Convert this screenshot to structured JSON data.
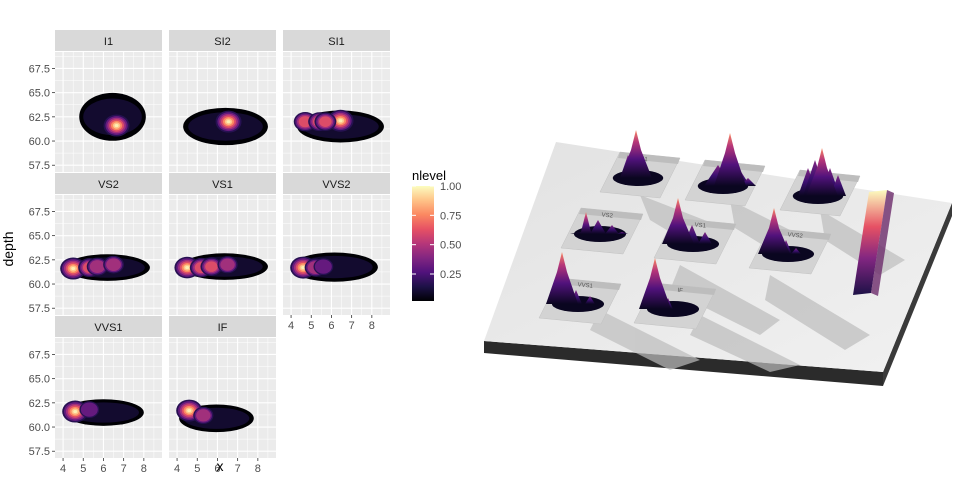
{
  "chart_data": [
    {
      "type": "heatmap",
      "subtype": "faceted 2D density (filled contours)",
      "xlabel": "x",
      "ylabel": "depth",
      "x_ticks": [
        4,
        5,
        6,
        7,
        8
      ],
      "y_ticks": [
        57.5,
        60.0,
        62.5,
        65.0,
        67.5
      ],
      "xlim": [
        3.6,
        8.9
      ],
      "ylim": [
        56.8,
        69.2
      ],
      "panel_background": "#ebebeb",
      "strip_background": "#d9d9d9",
      "legend": {
        "title": "nlevel",
        "position": "right",
        "ticks": [
          0.25,
          0.5,
          0.75,
          1.0
        ],
        "range": [
          0.02,
          1.0
        ],
        "colors": [
          "#000004",
          "#1d1147",
          "#51127c",
          "#822681",
          "#b63679",
          "#e65164",
          "#fb8861",
          "#fec287",
          "#fcfdbf"
        ]
      },
      "facets": [
        {
          "label": "I1",
          "row": 0,
          "col": 0,
          "peaks": [
            {
              "x": 6.65,
              "y": 61.6,
              "value": 1.0
            }
          ],
          "extent": {
            "x": [
              4.8,
              8.1
            ],
            "y": [
              58.0,
              67.0
            ]
          }
        },
        {
          "label": "SI2",
          "row": 0,
          "col": 1,
          "peaks": [
            {
              "x": 6.55,
              "y": 62.0,
              "value": 1.0
            }
          ],
          "extent": {
            "x": [
              4.3,
              8.5
            ],
            "y": [
              58.0,
              65.0
            ]
          }
        },
        {
          "label": "SI1",
          "row": 0,
          "col": 2,
          "peaks": [
            {
              "x": 6.45,
              "y": 62.1,
              "value": 1.0
            },
            {
              "x": 4.7,
              "y": 62.0,
              "value": 0.7
            },
            {
              "x": 5.4,
              "y": 62.0,
              "value": 0.65
            },
            {
              "x": 5.7,
              "y": 62.0,
              "value": 0.6
            }
          ],
          "extent": {
            "x": [
              4.3,
              8.6
            ],
            "y": [
              58.5,
              64.5
            ]
          }
        },
        {
          "label": "VS2",
          "row": 1,
          "col": 0,
          "peaks": [
            {
              "x": 4.5,
              "y": 61.6,
              "value": 1.0
            },
            {
              "x": 5.3,
              "y": 61.7,
              "value": 0.65
            },
            {
              "x": 5.7,
              "y": 61.8,
              "value": 0.55
            },
            {
              "x": 6.5,
              "y": 62.0,
              "value": 0.5
            }
          ],
          "extent": {
            "x": [
              4.1,
              8.3
            ],
            "y": [
              59.2,
              64.2
            ]
          }
        },
        {
          "label": "VS1",
          "row": 1,
          "col": 1,
          "peaks": [
            {
              "x": 4.5,
              "y": 61.7,
              "value": 0.95
            },
            {
              "x": 5.2,
              "y": 61.7,
              "value": 0.7
            },
            {
              "x": 5.7,
              "y": 61.8,
              "value": 0.6
            },
            {
              "x": 6.5,
              "y": 62.0,
              "value": 0.45
            }
          ],
          "extent": {
            "x": [
              4.2,
              8.5
            ],
            "y": [
              59.3,
              64.3
            ]
          }
        },
        {
          "label": "VVS2",
          "row": 1,
          "col": 2,
          "peaks": [
            {
              "x": 4.6,
              "y": 61.7,
              "value": 1.0
            },
            {
              "x": 5.2,
              "y": 61.7,
              "value": 0.55
            },
            {
              "x": 5.6,
              "y": 61.8,
              "value": 0.4
            }
          ],
          "extent": {
            "x": [
              4.0,
              8.3
            ],
            "y": [
              59.0,
              64.5
            ]
          }
        },
        {
          "label": "VVS1",
          "row": 2,
          "col": 0,
          "peaks": [
            {
              "x": 4.6,
              "y": 61.6,
              "value": 1.0
            },
            {
              "x": 5.3,
              "y": 61.8,
              "value": 0.4
            }
          ],
          "extent": {
            "x": [
              4.0,
              8.0
            ],
            "y": [
              59.0,
              64.0
            ]
          }
        },
        {
          "label": "IF",
          "row": 2,
          "col": 1,
          "peaks": [
            {
              "x": 4.6,
              "y": 61.7,
              "value": 1.0
            },
            {
              "x": 5.3,
              "y": 61.2,
              "value": 0.45
            }
          ],
          "extent": {
            "x": [
              4.1,
              7.8
            ],
            "y": [
              58.3,
              63.5
            ]
          }
        }
      ],
      "grid": true
    },
    {
      "type": "3d-surface",
      "subtype": "3D rendering of the faceted density chart",
      "facet_labels": [
        "I1",
        "SI2",
        "SI1",
        "VS2",
        "VS1",
        "VVS2",
        "VVS1",
        "IF"
      ],
      "shadow": true
    }
  ]
}
